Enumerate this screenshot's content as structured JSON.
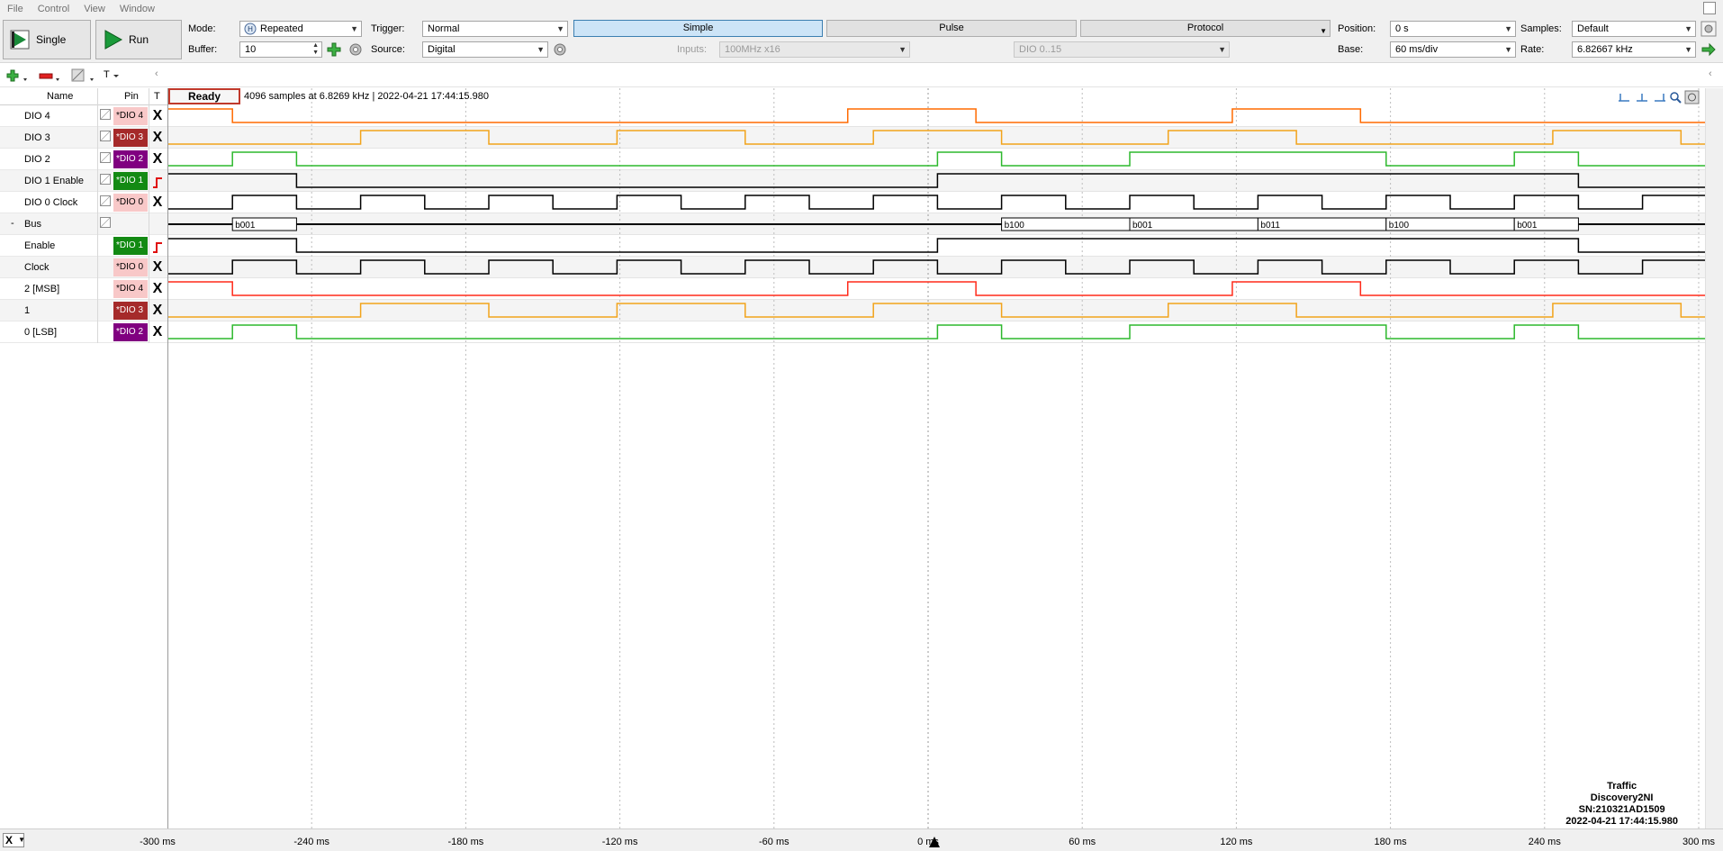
{
  "menu": {
    "items": [
      "File",
      "Control",
      "View",
      "Window"
    ]
  },
  "toolbar": {
    "single_label": "Single",
    "run_label": "Run",
    "mode_label": "Mode:",
    "mode_value": "Repeated",
    "buffer_label": "Buffer:",
    "buffer_value": "10",
    "trigger_label": "Trigger:",
    "trigger_value": "Normal",
    "source_label": "Source:",
    "source_value": "Digital",
    "tabs": [
      "Simple",
      "Pulse",
      "Protocol"
    ],
    "inputs_label": "Inputs:",
    "inputs_value": "100MHz x16",
    "dio_range_value": "DIO 0..15",
    "position_label": "Position:",
    "position_value": "0 s",
    "base_label": "Base:",
    "base_value": "60 ms/div",
    "samples_label": "Samples:",
    "samples_value": "Default",
    "rate_label": "Rate:",
    "rate_value": "6.82667 kHz"
  },
  "toolrow": {
    "t_label": "T"
  },
  "list_header": {
    "name": "Name",
    "pin": "Pin",
    "trigger": "T"
  },
  "signals": [
    {
      "name": "DIO 4",
      "pin": "*DIO 4",
      "pin_color": "#f8c8c8",
      "trig": "X",
      "wave_color": "#ff6a00",
      "indent": false
    },
    {
      "name": "DIO 3",
      "pin": "*DIO 3",
      "pin_color": "#a52a2a",
      "trig": "X",
      "wave_color": "#f2a31b",
      "indent": false
    },
    {
      "name": "DIO 2",
      "pin": "*DIO 2",
      "pin_color": "#800080",
      "trig": "X",
      "wave_color": "#2db82d",
      "indent": false
    },
    {
      "name": "DIO 1 Enable",
      "pin": "*DIO 1",
      "pin_color": "#138a13",
      "trig": "rise",
      "wave_color": "#000000",
      "indent": false
    },
    {
      "name": "DIO 0 Clock",
      "pin": "*DIO 0",
      "pin_color": "#f8c8c8",
      "trig": "X",
      "wave_color": "#000000",
      "indent": false
    },
    {
      "name": "Bus",
      "pin": "",
      "pin_color": "",
      "trig": "",
      "wave_color": "#000000",
      "indent": false,
      "toggle": "-"
    },
    {
      "name": "Enable",
      "pin": "*DIO 1",
      "pin_color": "#138a13",
      "trig": "rise",
      "wave_color": "#000000",
      "indent": true
    },
    {
      "name": "Clock",
      "pin": "*DIO 0",
      "pin_color": "#f8c8c8",
      "trig": "X",
      "wave_color": "#000000",
      "indent": true
    },
    {
      "name": "2 [MSB]",
      "pin": "*DIO 4",
      "pin_color": "#f8c8c8",
      "trig": "X",
      "wave_color": "#ff2a1a",
      "indent": true
    },
    {
      "name": "1",
      "pin": "*DIO 3",
      "pin_color": "#a52a2a",
      "trig": "X",
      "wave_color": "#f2a31b",
      "indent": true
    },
    {
      "name": "0 [LSB]",
      "pin": "*DIO 2",
      "pin_color": "#800080",
      "trig": "X",
      "wave_color": "#2db82d",
      "indent": true
    }
  ],
  "status": "Ready",
  "acquisition_info": "4096 samples at 6.8269 kHz | 2022-04-21 17:44:15.980",
  "bus_values": [
    "b001",
    "b100",
    "b001",
    "b011",
    "b100",
    "b001"
  ],
  "time_axis": {
    "ticks": [
      "-300 ms",
      "-240 ms",
      "-180 ms",
      "-120 ms",
      "-60 ms",
      "0 ms",
      "60 ms",
      "120 ms",
      "180 ms",
      "240 ms",
      "300 ms"
    ]
  },
  "device": {
    "line1": "Traffic",
    "line2": "Discovery2NI",
    "line3": "SN:210321AD1509",
    "line4": "2022-04-21 17:44:15.980"
  },
  "axis_button": "X"
}
